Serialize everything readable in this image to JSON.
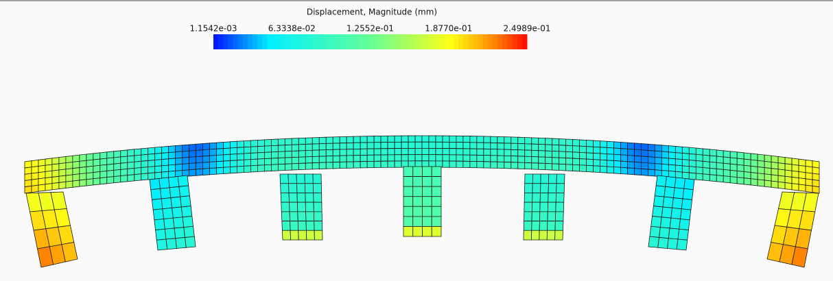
{
  "legend": {
    "title": "Displacement, Magnitude (mm)",
    "labels": [
      "1.1542e-03",
      "6.3338e-02",
      "1.2552e-01",
      "1.8770e-01",
      "2.4989e-01"
    ]
  }
}
